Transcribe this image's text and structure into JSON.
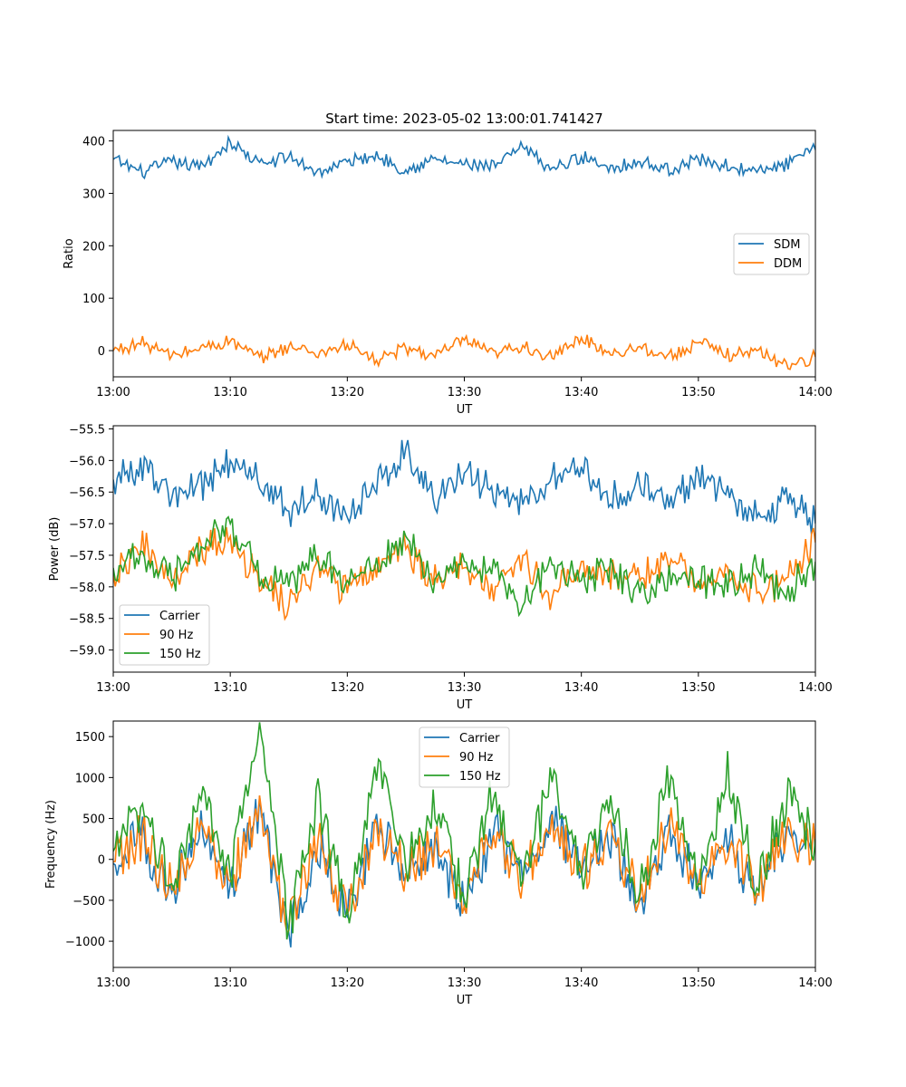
{
  "title": "Start time: 2023-05-02 13:00:01.741427",
  "colors": {
    "series1": "#1f77b4",
    "series2": "#ff7f0e",
    "series3": "#2ca02c"
  },
  "chart_data": [
    {
      "type": "line",
      "xlabel": "UT",
      "ylabel": "Ratio",
      "x_range": [
        "13:00",
        "14:00"
      ],
      "xticks": [
        "13:00",
        "13:10",
        "13:20",
        "13:30",
        "13:40",
        "13:50",
        "14:00"
      ],
      "yticks": [
        0,
        100,
        200,
        300,
        400
      ],
      "ylim": [
        -50,
        420
      ],
      "legend_position": "center-right",
      "x_minutes": [
        0,
        2.5,
        5,
        7.5,
        10,
        12.5,
        15,
        17.5,
        20,
        22.5,
        25,
        27.5,
        30,
        32.5,
        35,
        37.5,
        40,
        42.5,
        45,
        47.5,
        50,
        52.5,
        55,
        57.5,
        60
      ],
      "series": [
        {
          "name": "SDM",
          "color": "#1f77b4",
          "values": [
            365,
            340,
            360,
            350,
            398,
            355,
            370,
            340,
            360,
            372,
            345,
            365,
            355,
            350,
            388,
            345,
            370,
            350,
            360,
            345,
            365,
            352,
            340,
            355,
            383
          ]
        },
        {
          "name": "DDM",
          "color": "#ff7f0e",
          "values": [
            0,
            15,
            -10,
            5,
            18,
            -15,
            8,
            -5,
            12,
            -20,
            5,
            -10,
            20,
            -8,
            10,
            -15,
            25,
            -5,
            8,
            -12,
            15,
            -8,
            0,
            -28,
            -12
          ]
        }
      ]
    },
    {
      "type": "line",
      "xlabel": "UT",
      "ylabel": "Power (dB)",
      "x_range": [
        "13:00",
        "14:00"
      ],
      "xticks": [
        "13:00",
        "13:10",
        "13:20",
        "13:30",
        "13:40",
        "13:50",
        "14:00"
      ],
      "yticks": [
        -55.5,
        -56.0,
        -56.5,
        -57.0,
        -57.5,
        -58.0,
        -58.5,
        -59.0
      ],
      "ytick_labels": [
        "−55.5",
        "−56.0",
        "−56.5",
        "−57.0",
        "−57.5",
        "−58.0",
        "−58.5",
        "−59.0"
      ],
      "ylim": [
        -59.35,
        -55.45
      ],
      "legend_position": "lower-left",
      "x_minutes": [
        0,
        2.5,
        5,
        7.5,
        10,
        12.5,
        15,
        17.5,
        20,
        22.5,
        25,
        27.5,
        30,
        32.5,
        35,
        37.5,
        40,
        42.5,
        45,
        47.5,
        50,
        52.5,
        55,
        57.5,
        60
      ],
      "series": [
        {
          "name": "Carrier",
          "color": "#1f77b4",
          "values": [
            -56.3,
            -56.1,
            -56.6,
            -56.4,
            -56.0,
            -56.3,
            -56.8,
            -56.5,
            -56.9,
            -56.4,
            -55.8,
            -56.6,
            -56.2,
            -56.5,
            -56.7,
            -56.3,
            -56.1,
            -56.6,
            -56.4,
            -56.7,
            -56.2,
            -56.5,
            -56.9,
            -56.6,
            -57.0
          ]
        },
        {
          "name": "90 Hz",
          "color": "#ff7f0e",
          "values": [
            -57.8,
            -57.3,
            -58.0,
            -57.4,
            -57.2,
            -57.9,
            -58.3,
            -57.7,
            -58.1,
            -57.6,
            -57.4,
            -57.9,
            -57.7,
            -58.0,
            -57.5,
            -58.2,
            -57.6,
            -57.8,
            -57.9,
            -57.5,
            -58.0,
            -57.7,
            -58.1,
            -57.9,
            -57.3
          ]
        },
        {
          "name": "150 Hz",
          "color": "#2ca02c",
          "values": [
            -57.7,
            -57.5,
            -57.9,
            -57.3,
            -57.0,
            -57.8,
            -58.0,
            -57.5,
            -57.9,
            -57.7,
            -57.2,
            -58.0,
            -57.6,
            -57.8,
            -58.3,
            -57.6,
            -57.9,
            -57.7,
            -58.1,
            -57.8,
            -57.9,
            -58.0,
            -57.7,
            -58.1,
            -57.6
          ]
        }
      ]
    },
    {
      "type": "line",
      "xlabel": "UT",
      "ylabel": "Frequency (Hz)",
      "x_range": [
        "13:00",
        "14:00"
      ],
      "xticks": [
        "13:00",
        "13:10",
        "13:20",
        "13:30",
        "13:40",
        "13:50",
        "14:00"
      ],
      "yticks": [
        -1000,
        -500,
        0,
        500,
        1000,
        1500
      ],
      "ytick_labels": [
        "−1000",
        "−500",
        "0",
        "500",
        "1000",
        "1500"
      ],
      "ylim": [
        -1320,
        1690
      ],
      "legend_position": "upper-center",
      "x_minutes": [
        0,
        2.5,
        5,
        7.5,
        10,
        12.5,
        15,
        17.5,
        20,
        22.5,
        25,
        27.5,
        30,
        32.5,
        35,
        37.5,
        40,
        42.5,
        45,
        47.5,
        50,
        52.5,
        55,
        57.5,
        60
      ],
      "series": [
        {
          "name": "Carrier",
          "color": "#1f77b4",
          "values": [
            -50,
            250,
            -400,
            350,
            -300,
            600,
            -900,
            200,
            -700,
            400,
            -200,
            150,
            -600,
            350,
            -300,
            500,
            -200,
            300,
            -500,
            400,
            -350,
            250,
            -450,
            300,
            100
          ]
        },
        {
          "name": "90 Hz",
          "color": "#ff7f0e",
          "values": [
            -30,
            280,
            -370,
            380,
            -270,
            630,
            -870,
            230,
            -670,
            430,
            -170,
            180,
            -570,
            380,
            -270,
            530,
            -170,
            330,
            -470,
            430,
            -320,
            280,
            -420,
            330,
            130
          ]
        },
        {
          "name": "150 Hz",
          "color": "#2ca02c",
          "values": [
            100,
            700,
            -300,
            800,
            -200,
            1550,
            -850,
            700,
            -600,
            1100,
            -100,
            600,
            -500,
            900,
            -250,
            1000,
            -150,
            800,
            -400,
            1000,
            -300,
            1100,
            -350,
            750,
            250
          ]
        }
      ]
    }
  ]
}
